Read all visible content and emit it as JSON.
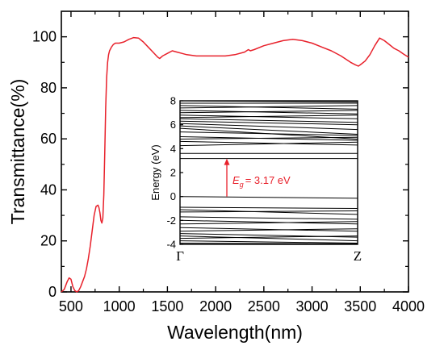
{
  "chart_data": [
    {
      "type": "line",
      "xlabel": "Wavelength(nm)",
      "ylabel": "Transmittance(%)",
      "xlim": [
        400,
        4000
      ],
      "ylim": [
        0,
        110
      ],
      "xticks": [
        "500",
        "1000",
        "1500",
        "2000",
        "2500",
        "3000",
        "3500",
        "4000"
      ],
      "yticks": [
        "0",
        "20",
        "40",
        "60",
        "80",
        "100"
      ],
      "grid": false,
      "series": [
        {
          "color": "#e8212b",
          "x": [
            400,
            430,
            460,
            480,
            500,
            520,
            540,
            560,
            580,
            600,
            620,
            640,
            660,
            680,
            700,
            720,
            740,
            760,
            780,
            790,
            800,
            810,
            820,
            830,
            840,
            850,
            860,
            870,
            880,
            890,
            900,
            920,
            940,
            960,
            980,
            1000,
            1050,
            1100,
            1150,
            1200,
            1250,
            1300,
            1350,
            1400,
            1420,
            1450,
            1500,
            1550,
            1600,
            1650,
            1700,
            1800,
            1900,
            2000,
            2100,
            2200,
            2300,
            2340,
            2360,
            2400,
            2500,
            2600,
            2700,
            2800,
            2900,
            3000,
            3100,
            3200,
            3300,
            3400,
            3450,
            3480,
            3500,
            3550,
            3600,
            3650,
            3700,
            3750,
            3800,
            3850,
            3900,
            3950,
            4000
          ],
          "y": [
            0,
            1,
            4,
            5.5,
            5,
            2,
            0.5,
            0,
            0.5,
            2,
            4,
            6,
            9,
            13,
            18,
            24,
            30,
            33.5,
            34,
            33,
            31,
            28,
            27,
            29,
            38,
            55,
            72,
            84,
            90,
            93,
            94.5,
            96,
            97,
            97.5,
            97.5,
            97.5,
            98,
            99,
            99.7,
            99.5,
            98,
            96,
            94,
            92,
            91.5,
            92.5,
            93.5,
            94.5,
            94,
            93.5,
            93,
            92.5,
            92.5,
            92.5,
            92.5,
            93,
            94,
            95,
            94.5,
            95,
            96.5,
            97.5,
            98.5,
            99,
            98.5,
            97.5,
            96,
            94.5,
            92.5,
            90,
            89,
            88.5,
            89,
            90.5,
            93,
            96.5,
            99.5,
            98.5,
            97,
            95.5,
            94.5,
            93.2,
            92
          ]
        }
      ]
    },
    {
      "type": "line",
      "ylabel": "Energy (eV)",
      "ylim": [
        -4,
        8
      ],
      "yticks": [
        "-4",
        "-2",
        "0",
        "2",
        "4",
        "6",
        "8"
      ],
      "xticks": [
        "Γ",
        "Z"
      ],
      "annotation": {
        "symbol": "E",
        "subscript": "g",
        "text": "= 3.17 eV",
        "from": 0,
        "to": 3.17
      },
      "bands": [
        [
          3.17,
          3.17
        ],
        [
          3.6,
          3.6
        ],
        [
          4.25,
          4.55
        ],
        [
          4.6,
          4.3
        ],
        [
          4.8,
          4.95
        ],
        [
          5.0,
          4.7
        ],
        [
          5.4,
          5.1
        ],
        [
          5.7,
          4.8
        ],
        [
          5.9,
          5.2
        ],
        [
          6.1,
          5.6
        ],
        [
          6.3,
          6.0
        ],
        [
          6.5,
          6.2
        ],
        [
          6.6,
          6.8
        ],
        [
          6.8,
          6.5
        ],
        [
          7.0,
          7.2
        ],
        [
          7.2,
          6.9
        ],
        [
          7.4,
          7.6
        ],
        [
          7.6,
          7.3
        ],
        [
          7.8,
          7.8
        ],
        [
          8.0,
          7.9
        ],
        [
          0.0,
          -0.15
        ],
        [
          -0.9,
          -1.0
        ],
        [
          -1.1,
          -1.5
        ],
        [
          -1.3,
          -1.2
        ],
        [
          -1.7,
          -1.9
        ],
        [
          -2.0,
          -2.3
        ],
        [
          -2.3,
          -2.1
        ],
        [
          -2.6,
          -2.9
        ],
        [
          -2.9,
          -2.7
        ],
        [
          -3.1,
          -3.4
        ],
        [
          -3.3,
          -3.7
        ],
        [
          -3.5,
          -3.3
        ],
        [
          -3.7,
          -3.9
        ],
        [
          -3.9,
          -3.95
        ]
      ]
    }
  ],
  "style": {
    "main_line_color": "#e8212b",
    "annotation_color": "#e8212b"
  }
}
